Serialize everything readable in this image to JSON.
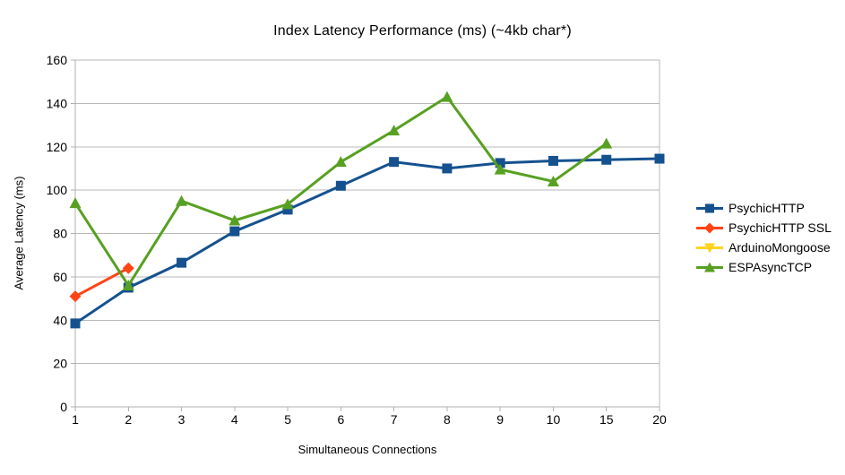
{
  "chart_data": {
    "type": "line",
    "title": "Index Latency Performance (ms) (~4kb char*)",
    "xlabel": "Simultaneous Connections",
    "ylabel": "Average Latency (ms)",
    "categories": [
      "1",
      "2",
      "3",
      "4",
      "5",
      "6",
      "7",
      "8",
      "9",
      "10",
      "15",
      "20"
    ],
    "ylim": [
      0,
      160
    ],
    "ytick_step": 20,
    "yticks": [
      0,
      20,
      40,
      60,
      80,
      100,
      120,
      140,
      160
    ],
    "grid": true,
    "legend_position": "right",
    "colors": {
      "gridline": "#b9b9b9",
      "axis": "#b0b0b0",
      "text": "#000000",
      "background": "#ffffff"
    },
    "series": [
      {
        "name": "PsychicHTTP",
        "color": "#15518f",
        "marker": "square",
        "values": [
          38.5,
          55,
          66.5,
          81,
          91,
          102,
          113,
          110,
          112.5,
          113.5,
          114,
          114.5
        ]
      },
      {
        "name": "PsychicHTTP SSL",
        "color": "#ff4413",
        "marker": "diamond",
        "values": [
          51,
          64
        ]
      },
      {
        "name": "ArduinoMongoose",
        "color": "#ffd320",
        "marker": "triangle-down",
        "values": []
      },
      {
        "name": "ESPAsyncTCP",
        "color": "#57a021",
        "marker": "triangle-up",
        "values": [
          94,
          56,
          95,
          86,
          93.5,
          113,
          127.5,
          143,
          109.5,
          104,
          121.5
        ]
      }
    ]
  }
}
